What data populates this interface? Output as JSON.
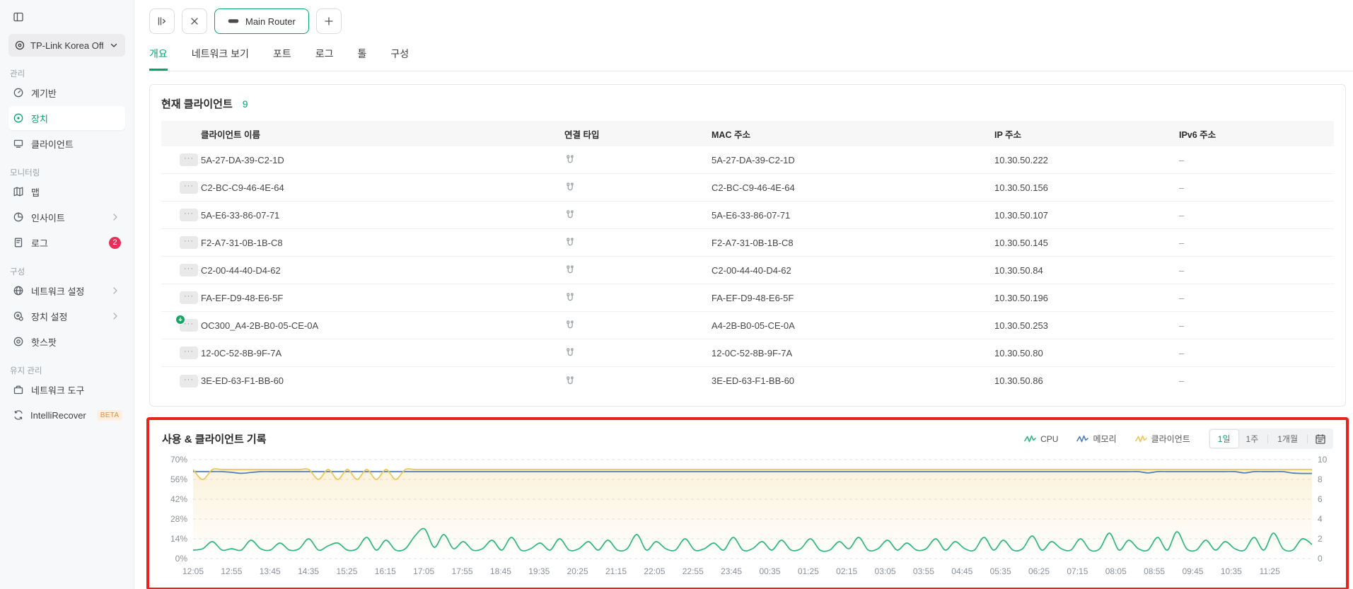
{
  "accent": "#00a76d",
  "highlight_border": "#e8231d",
  "sidebar": {
    "toggle_icon": "panel-toggle-icon",
    "site": {
      "icon": "site-icon",
      "label": "TP-Link Korea Offi...",
      "chevron_icon": "chevron-down-icon"
    },
    "sections": [
      {
        "label": "관리",
        "items": [
          {
            "label": "계기반",
            "icon": "gauge-icon"
          },
          {
            "label": "장치",
            "icon": "device-icon",
            "active": true
          },
          {
            "label": "클라이언트",
            "icon": "clients-icon"
          }
        ]
      },
      {
        "label": "모니터링",
        "items": [
          {
            "label": "맵",
            "icon": "map-icon"
          },
          {
            "label": "인사이트",
            "icon": "insight-icon",
            "chevron": true
          },
          {
            "label": "로그",
            "icon": "log-icon",
            "badge": "2"
          }
        ]
      },
      {
        "label": "구성",
        "items": [
          {
            "label": "네트워크 설정",
            "icon": "network-settings-icon",
            "chevron": true
          },
          {
            "label": "장치 설정",
            "icon": "device-settings-icon",
            "chevron": true
          },
          {
            "label": "핫스팟",
            "icon": "hotspot-icon"
          }
        ]
      },
      {
        "label": "유지 관리",
        "items": [
          {
            "label": "네트워크 도구",
            "icon": "network-tools-icon"
          },
          {
            "label": "IntelliRecover",
            "icon": "sync-icon",
            "beta": "BETA"
          }
        ]
      }
    ],
    "badge_color": "#e5305a"
  },
  "toolbar": {
    "collapse_icon": "collapse-panel-icon",
    "close_icon": "close-icon",
    "add_icon": "add-icon",
    "device_tab": {
      "icon": "router-icon",
      "label": "Main Router"
    }
  },
  "device_tabs": {
    "items": [
      "개요",
      "네트워크 보기",
      "포트",
      "로그",
      "톨",
      "구성"
    ],
    "active_index": 0
  },
  "clients": {
    "title": "현재 클라이언트",
    "count": "9",
    "columns": [
      "클라이언트 이름",
      "연결 타입",
      "MAC 주소",
      "IP 주소",
      "IPv6 주소"
    ],
    "connection_icon": "wired-connection-icon",
    "row_menu_icon": "ellipsis-icon",
    "adopt_badge_icon": "arrow-down-badge-icon",
    "rows": [
      {
        "name": "5A-27-DA-39-C2-1D",
        "mac": "5A-27-DA-39-C2-1D",
        "ip": "10.30.50.222",
        "ipv6": "–"
      },
      {
        "name": "C2-BC-C9-46-4E-64",
        "mac": "C2-BC-C9-46-4E-64",
        "ip": "10.30.50.156",
        "ipv6": "–"
      },
      {
        "name": "5A-E6-33-86-07-71",
        "mac": "5A-E6-33-86-07-71",
        "ip": "10.30.50.107",
        "ipv6": "–"
      },
      {
        "name": "F2-A7-31-0B-1B-C8",
        "mac": "F2-A7-31-0B-1B-C8",
        "ip": "10.30.50.145",
        "ipv6": "–"
      },
      {
        "name": "C2-00-44-40-D4-62",
        "mac": "C2-00-44-40-D4-62",
        "ip": "10.30.50.84",
        "ipv6": "–"
      },
      {
        "name": "FA-EF-D9-48-E6-5F",
        "mac": "FA-EF-D9-48-E6-5F",
        "ip": "10.30.50.196",
        "ipv6": "–"
      },
      {
        "name": "OC300_A4-2B-B0-05-CE-0A",
        "mac": "A4-2B-B0-05-CE-0A",
        "ip": "10.30.50.253",
        "ipv6": "–",
        "adopt_badge": true
      },
      {
        "name": "12-0C-52-8B-9F-7A",
        "mac": "12-0C-52-8B-9F-7A",
        "ip": "10.30.50.80",
        "ipv6": "–"
      },
      {
        "name": "3E-ED-63-F1-BB-60",
        "mac": "3E-ED-63-F1-BB-60",
        "ip": "10.30.50.86",
        "ipv6": "–"
      }
    ]
  },
  "usage": {
    "ranges": {
      "items": [
        "1일",
        "1주",
        "1개월"
      ],
      "active_index": 0,
      "calendar_icon": "calendar-icon"
    }
  },
  "chart_data": {
    "type": "line",
    "title": "사용 & 클라이언트 기록",
    "grid": "horizontal-dashed",
    "legend_position": "top-right",
    "left_axis": {
      "ticks": [
        "70%",
        "56%",
        "42%",
        "28%",
        "14%",
        "0%"
      ],
      "range": [
        0,
        70
      ],
      "unit": "%"
    },
    "right_axis": {
      "ticks": [
        "10",
        "8",
        "6",
        "4",
        "2",
        "0"
      ],
      "range": [
        0,
        10
      ],
      "unit": "clients"
    },
    "x_ticks": [
      "12:05",
      "12:55",
      "13:45",
      "14:35",
      "15:25",
      "16:15",
      "17:05",
      "17:55",
      "18:45",
      "19:35",
      "20:25",
      "21:15",
      "22:05",
      "22:55",
      "23:45",
      "00:35",
      "01:25",
      "02:15",
      "03:05",
      "03:55",
      "04:45",
      "05:35",
      "06:25",
      "07:15",
      "08:05",
      "08:55",
      "09:45",
      "10:35",
      "11:25"
    ],
    "series": [
      {
        "name": "CPU",
        "color": "#2eb87e",
        "axis": "left",
        "unit": "%",
        "values": [
          6,
          7,
          12,
          6,
          7,
          6,
          13,
          7,
          6,
          11,
          6,
          7,
          14,
          6,
          9,
          11,
          6,
          7,
          15,
          6,
          13,
          6,
          7,
          16,
          21,
          8,
          17,
          7,
          12,
          6,
          7,
          13,
          6,
          15,
          6,
          7,
          11,
          6,
          14,
          6,
          7,
          12,
          6,
          13,
          6,
          7,
          17,
          6,
          12,
          7,
          6,
          14,
          6,
          7,
          11,
          6,
          15,
          6,
          7,
          12,
          6,
          13,
          6,
          7,
          14,
          6,
          6,
          12,
          7,
          15,
          6,
          7,
          13,
          6,
          11,
          6,
          7,
          14,
          6,
          12,
          7,
          6,
          15,
          6,
          13,
          6,
          7,
          16,
          6,
          12,
          7,
          6,
          14,
          6,
          7,
          18,
          6,
          13,
          7,
          6,
          15,
          6,
          19,
          7,
          6,
          13,
          6,
          12,
          7,
          6,
          15,
          6,
          18,
          7,
          6,
          14,
          10
        ]
      },
      {
        "name": "메모리",
        "color": "#4d7fb3",
        "axis": "left",
        "unit": "%",
        "values": [
          61.5,
          61.5,
          61.5,
          61.5,
          61,
          60.3,
          60.9,
          61.5,
          61.5,
          61.5,
          61.5,
          61.5,
          61.5,
          61.5,
          61.5,
          61.5,
          61.5,
          61.5,
          61.5,
          61.5,
          61.5,
          61.5,
          61.5,
          61.5,
          61.5,
          61.5,
          61.5,
          61.5,
          61.5,
          61.5,
          61.5,
          61.5,
          61.5,
          61.5,
          61.5,
          61.5,
          61.5,
          61.5,
          61.5,
          61.5,
          61.5,
          61.5,
          61.5,
          61.5,
          61.5,
          61.5,
          61.5,
          61.5,
          61.5,
          61.5,
          61.5,
          61.5,
          61.5,
          61.5,
          61.5,
          61.5,
          61.5,
          61.5,
          61.5,
          61.5,
          61.5,
          61.5,
          61.5,
          61.5,
          61.5,
          61.5,
          61.5,
          61.5,
          61.5,
          61.5,
          61.5,
          61.5,
          61.5,
          61.5,
          61.5,
          61.5,
          61.5,
          61.5,
          61.5,
          61.5,
          61.5,
          61.5,
          61.5,
          61.5,
          61.5,
          61.5,
          61.5,
          61.5,
          61.5,
          61.5,
          61.5,
          61.5,
          61.5,
          61.5,
          61.5,
          61.5,
          61.5,
          61.5,
          61.5,
          60.6,
          61.5,
          61.5,
          61.5,
          61.5,
          61.5,
          61.5,
          61.5,
          61.5,
          61.5,
          60.6,
          61.5,
          61.5,
          61.5,
          61.5,
          60.5,
          60.2,
          60.2
        ]
      },
      {
        "name": "클라이언트",
        "color": "#eec559",
        "axis": "right",
        "unit": "clients",
        "area_fill": true,
        "values": [
          9,
          8,
          9,
          9,
          9,
          9,
          9,
          9,
          9,
          9,
          9,
          9,
          9,
          8,
          9,
          8,
          9,
          8,
          9,
          8,
          9,
          8,
          9,
          9,
          9,
          9,
          9,
          9,
          9,
          9,
          9,
          9,
          9,
          9,
          9,
          9,
          9,
          9,
          9,
          9,
          9,
          9,
          9,
          9,
          9,
          9,
          9,
          9,
          9,
          9,
          9,
          9,
          9,
          9,
          9,
          9,
          9,
          9,
          9,
          9,
          9,
          9,
          9,
          9,
          9,
          9,
          9,
          9,
          9,
          9,
          9,
          9,
          9,
          9,
          9,
          9,
          9,
          9,
          9,
          9,
          9,
          9,
          9,
          9,
          9,
          9,
          9,
          9,
          9,
          9,
          9,
          9,
          9,
          9,
          9,
          9,
          9,
          9,
          9,
          9,
          9,
          9,
          9,
          9,
          9,
          9,
          9,
          9,
          9,
          9,
          9,
          9,
          9,
          9,
          9,
          9,
          9
        ]
      }
    ]
  }
}
